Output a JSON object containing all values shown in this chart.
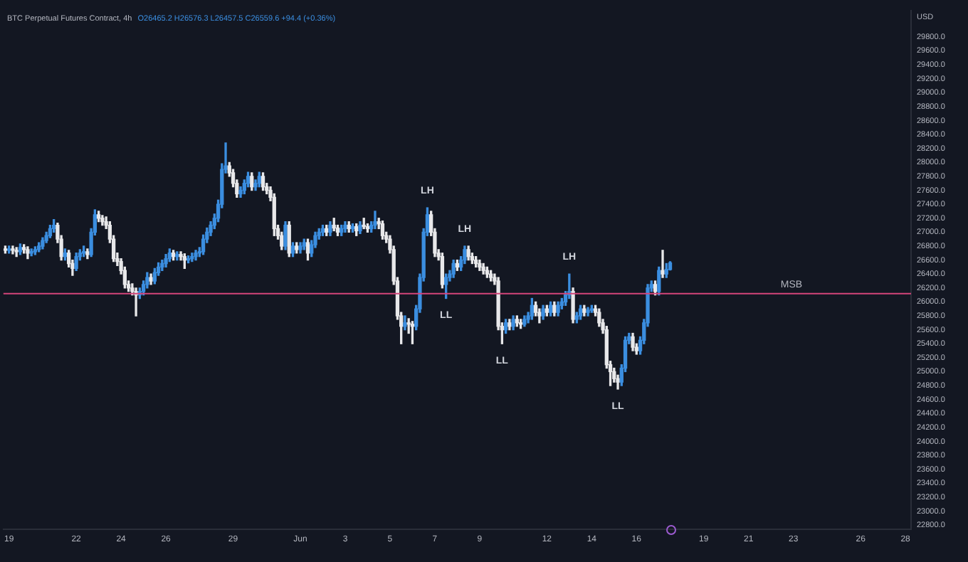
{
  "chart_data": {
    "type": "candlestick",
    "title": "BTC Perpetual Futures Contract, 4h",
    "subtitle": "O26465.2 H26576.3 L26457.5 C26559.6 +94.4 (+0.36%)",
    "ylabel": "USD",
    "x": [
      "--05-18T20:00",
      "--05-19T00:00",
      "--05-19T04:00",
      "--05-19T08:00",
      "--05-19T12:00",
      "--05-19T16:00",
      "--05-19T20:00",
      "--05-20T00:00",
      "--05-20T04:00",
      "--05-20T08:00",
      "--05-20T12:00",
      "--05-20T16:00",
      "--05-20T20:00",
      "--05-21T00:00",
      "--05-21T04:00",
      "--05-21T08:00",
      "--05-21T12:00",
      "--05-21T16:00",
      "--05-21T20:00",
      "--05-22T00:00",
      "--05-22T04:00",
      "--05-22T08:00",
      "--05-22T12:00",
      "--05-22T16:00",
      "--05-22T20:00",
      "--05-23T00:00",
      "--05-23T04:00",
      "--05-23T08:00",
      "--05-23T12:00",
      "--05-23T16:00",
      "--05-23T20:00",
      "--05-24T00:00",
      "--05-24T04:00",
      "--05-24T08:00",
      "--05-24T12:00",
      "--05-24T16:00",
      "--05-24T20:00",
      "--05-25T00:00",
      "--05-25T04:00",
      "--05-25T08:00",
      "--05-25T12:00",
      "--05-25T16:00",
      "--05-25T20:00",
      "--05-26T00:00",
      "--05-26T04:00",
      "--05-26T08:00",
      "--05-26T12:00",
      "--05-26T16:00",
      "--05-26T20:00",
      "--05-27T00:00",
      "--05-27T04:00",
      "--05-27T08:00",
      "--05-27T12:00",
      "--05-27T16:00",
      "--05-27T20:00",
      "--05-28T00:00",
      "--05-28T04:00",
      "--05-28T08:00",
      "--05-28T12:00",
      "--05-28T16:00",
      "--05-28T20:00",
      "--05-29T00:00",
      "--05-29T04:00",
      "--05-29T08:00",
      "--05-29T12:00",
      "--05-29T16:00",
      "--05-29T20:00",
      "--05-30T00:00",
      "--05-30T04:00",
      "--05-30T08:00",
      "--05-30T12:00",
      "--05-30T16:00",
      "--05-30T20:00",
      "--05-31T00:00",
      "--05-31T04:00",
      "--05-31T08:00",
      "--05-31T12:00",
      "--05-31T16:00",
      "--05-31T20:00",
      "--06-01T00:00",
      "--06-01T04:00",
      "--06-01T08:00",
      "--06-01T12:00",
      "--06-01T16:00",
      "--06-01T20:00",
      "--06-02T00:00",
      "--06-02T04:00",
      "--06-02T08:00",
      "--06-02T12:00",
      "--06-02T16:00",
      "--06-02T20:00",
      "--06-03T00:00",
      "--06-03T04:00",
      "--06-03T08:00",
      "--06-03T12:00",
      "--06-03T16:00",
      "--06-03T20:00",
      "--06-04T00:00",
      "--06-04T04:00",
      "--06-04T08:00",
      "--06-04T12:00",
      "--06-04T16:00",
      "--06-04T20:00",
      "--06-05T00:00",
      "--06-05T04:00",
      "--06-05T08:00",
      "--06-05T12:00",
      "--06-05T16:00",
      "--06-05T20:00",
      "--06-06T00:00",
      "--06-06T04:00",
      "--06-06T08:00",
      "--06-06T12:00",
      "--06-06T16:00",
      "--06-06T20:00",
      "--06-07T00:00",
      "--06-07T04:00",
      "--06-07T08:00",
      "--06-07T12:00",
      "--06-07T16:00",
      "--06-07T20:00",
      "--06-08T00:00",
      "--06-08T04:00",
      "--06-08T08:00",
      "--06-08T12:00",
      "--06-08T16:00",
      "--06-08T20:00",
      "--06-09T00:00",
      "--06-09T04:00",
      "--06-09T08:00",
      "--06-09T12:00",
      "--06-09T16:00",
      "--06-09T20:00",
      "--06-10T00:00",
      "--06-10T04:00",
      "--06-10T08:00",
      "--06-10T12:00",
      "--06-10T16:00",
      "--06-10T20:00",
      "--06-11T00:00",
      "--06-11T04:00",
      "--06-11T08:00",
      "--06-11T12:00",
      "--06-11T16:00",
      "--06-11T20:00",
      "--06-12T00:00",
      "--06-12T04:00",
      "--06-12T08:00",
      "--06-12T12:00",
      "--06-12T16:00",
      "--06-12T20:00",
      "--06-13T00:00",
      "--06-13T04:00",
      "--06-13T08:00",
      "--06-13T12:00",
      "--06-13T16:00",
      "--06-13T20:00",
      "--06-14T00:00",
      "--06-14T04:00",
      "--06-14T08:00",
      "--06-14T12:00",
      "--06-14T16:00",
      "--06-14T20:00",
      "--06-15T00:00",
      "--06-15T04:00",
      "--06-15T08:00",
      "--06-15T12:00",
      "--06-15T16:00",
      "--06-15T20:00",
      "--06-16T00:00",
      "--06-16T04:00",
      "--06-16T08:00",
      "--06-16T12:00",
      "--06-16T16:00",
      "--06-16T20:00",
      "--06-17T00:00",
      "--06-17T04:00",
      "--06-17T08:00",
      "--06-17T12:00"
    ],
    "ohlc": [
      [
        26760,
        26800,
        26700,
        26740
      ],
      [
        26740,
        26800,
        26700,
        26760
      ],
      [
        26760,
        26800,
        26690,
        26740
      ],
      [
        26740,
        26780,
        26650,
        26720
      ],
      [
        26720,
        26830,
        26680,
        26780
      ],
      [
        26780,
        26820,
        26700,
        26750
      ],
      [
        26750,
        26790,
        26620,
        26700
      ],
      [
        26700,
        26760,
        26660,
        26720
      ],
      [
        26720,
        26790,
        26680,
        26750
      ],
      [
        26750,
        26850,
        26720,
        26800
      ],
      [
        26800,
        26920,
        26760,
        26880
      ],
      [
        26880,
        27000,
        26850,
        26950
      ],
      [
        26950,
        27100,
        26920,
        27050
      ],
      [
        27050,
        27180,
        27000,
        27100
      ],
      [
        27100,
        27130,
        26850,
        26900
      ],
      [
        26900,
        26950,
        26600,
        26650
      ],
      [
        26650,
        26760,
        26600,
        26700
      ],
      [
        26700,
        26740,
        26500,
        26550
      ],
      [
        26550,
        26600,
        26380,
        26480
      ],
      [
        26480,
        26700,
        26450,
        26650
      ],
      [
        26650,
        26750,
        26600,
        26700
      ],
      [
        26700,
        26800,
        26650,
        26720
      ],
      [
        26720,
        26760,
        26620,
        26680
      ],
      [
        26680,
        27050,
        26650,
        27000
      ],
      [
        27000,
        27320,
        26960,
        27250
      ],
      [
        27250,
        27300,
        27150,
        27200
      ],
      [
        27200,
        27240,
        27100,
        27150
      ],
      [
        27150,
        27220,
        27050,
        27100
      ],
      [
        27100,
        27150,
        26850,
        26900
      ],
      [
        26900,
        26950,
        26580,
        26620
      ],
      [
        26620,
        26700,
        26520,
        26580
      ],
      [
        26580,
        26620,
        26400,
        26450
      ],
      [
        26450,
        26500,
        26200,
        26250
      ],
      [
        26250,
        26300,
        26150,
        26200
      ],
      [
        26200,
        26260,
        26100,
        26150
      ],
      [
        26150,
        26200,
        25800,
        26100
      ],
      [
        26100,
        26200,
        26050,
        26150
      ],
      [
        26150,
        26300,
        26100,
        26250
      ],
      [
        26250,
        26420,
        26200,
        26350
      ],
      [
        26350,
        26400,
        26250,
        26300
      ],
      [
        26300,
        26480,
        26260,
        26420
      ],
      [
        26420,
        26560,
        26380,
        26500
      ],
      [
        26500,
        26600,
        26450,
        26550
      ],
      [
        26550,
        26680,
        26500,
        26620
      ],
      [
        26620,
        26760,
        26580,
        26700
      ],
      [
        26700,
        26740,
        26600,
        26650
      ],
      [
        26650,
        26720,
        26600,
        26680
      ],
      [
        26680,
        26720,
        26600,
        26650
      ],
      [
        26650,
        26690,
        26480,
        26600
      ],
      [
        26600,
        26660,
        26560,
        26620
      ],
      [
        26620,
        26700,
        26580,
        26650
      ],
      [
        26650,
        26740,
        26600,
        26700
      ],
      [
        26700,
        26780,
        26650,
        26720
      ],
      [
        26720,
        26960,
        26680,
        26900
      ],
      [
        26900,
        27060,
        26850,
        27000
      ],
      [
        27000,
        27150,
        26950,
        27100
      ],
      [
        27100,
        27260,
        27050,
        27200
      ],
      [
        27200,
        27460,
        27150,
        27400
      ],
      [
        27400,
        27980,
        27350,
        27900
      ],
      [
        27900,
        28280,
        27850,
        27950
      ],
      [
        27950,
        28000,
        27800,
        27850
      ],
      [
        27850,
        27900,
        27650,
        27700
      ],
      [
        27700,
        27750,
        27500,
        27550
      ],
      [
        27550,
        27650,
        27500,
        27600
      ],
      [
        27600,
        27750,
        27550,
        27700
      ],
      [
        27700,
        27860,
        27650,
        27800
      ],
      [
        27800,
        27850,
        27600,
        27650
      ],
      [
        27650,
        27750,
        27600,
        27700
      ],
      [
        27700,
        27860,
        27650,
        27800
      ],
      [
        27800,
        27850,
        27600,
        27650
      ],
      [
        27650,
        27700,
        27550,
        27600
      ],
      [
        27600,
        27650,
        27450,
        27500
      ],
      [
        27500,
        27550,
        26950,
        27050
      ],
      [
        27050,
        27100,
        26900,
        26950
      ],
      [
        26950,
        27000,
        26750,
        26800
      ],
      [
        26800,
        27150,
        26750,
        27100
      ],
      [
        27100,
        27150,
        26650,
        26700
      ],
      [
        26700,
        26850,
        26650,
        26800
      ],
      [
        26800,
        26850,
        26700,
        26750
      ],
      [
        26750,
        26850,
        26700,
        26800
      ],
      [
        26800,
        26900,
        26750,
        26850
      ],
      [
        26850,
        26900,
        26600,
        26700
      ],
      [
        26700,
        26880,
        26650,
        26820
      ],
      [
        26820,
        27000,
        26780,
        26950
      ],
      [
        26950,
        27050,
        26900,
        27000
      ],
      [
        27000,
        27100,
        26950,
        27050
      ],
      [
        27050,
        27100,
        26950,
        27000
      ],
      [
        27000,
        27150,
        26950,
        27100
      ],
      [
        27100,
        27200,
        27020,
        27060
      ],
      [
        27060,
        27100,
        26950,
        27000
      ],
      [
        27000,
        27100,
        26950,
        27050
      ],
      [
        27050,
        27150,
        27000,
        27100
      ],
      [
        27100,
        27150,
        27000,
        27050
      ],
      [
        27050,
        27120,
        27000,
        27080
      ],
      [
        27080,
        27120,
        26950,
        27020
      ],
      [
        27020,
        27150,
        26980,
        27100
      ],
      [
        27100,
        27200,
        27050,
        27080
      ],
      [
        27080,
        27120,
        27000,
        27050
      ],
      [
        27050,
        27150,
        27000,
        27100
      ],
      [
        27100,
        27300,
        27050,
        27150
      ],
      [
        27150,
        27200,
        27050,
        27120
      ],
      [
        27120,
        27160,
        26900,
        26950
      ],
      [
        26950,
        27000,
        26850,
        26900
      ],
      [
        26900,
        26950,
        26700,
        26750
      ],
      [
        26750,
        26800,
        26250,
        26300
      ],
      [
        26300,
        26350,
        25750,
        25800
      ],
      [
        25800,
        25850,
        25400,
        25650
      ],
      [
        25650,
        25800,
        25600,
        25700
      ],
      [
        25700,
        25760,
        25550,
        25680
      ],
      [
        25680,
        25720,
        25400,
        25650
      ],
      [
        25650,
        25950,
        25600,
        25900
      ],
      [
        25900,
        26400,
        25850,
        26350
      ],
      [
        26350,
        27050,
        26300,
        27000
      ],
      [
        27000,
        27350,
        26950,
        27250
      ],
      [
        27250,
        27300,
        26950,
        27000
      ],
      [
        27000,
        27050,
        26650,
        26700
      ],
      [
        26700,
        26750,
        26600,
        26650
      ],
      [
        26650,
        26700,
        26200,
        26250
      ],
      [
        26250,
        26400,
        26050,
        26350
      ],
      [
        26350,
        26450,
        26300,
        26400
      ],
      [
        26400,
        26600,
        26350,
        26550
      ],
      [
        26550,
        26600,
        26450,
        26500
      ],
      [
        26500,
        26650,
        26450,
        26600
      ],
      [
        26600,
        26800,
        26550,
        26750
      ],
      [
        26750,
        26800,
        26600,
        26650
      ],
      [
        26650,
        26700,
        26550,
        26600
      ],
      [
        26600,
        26650,
        26500,
        26550
      ],
      [
        26550,
        26600,
        26450,
        26500
      ],
      [
        26500,
        26550,
        26400,
        26450
      ],
      [
        26450,
        26500,
        26350,
        26400
      ],
      [
        26400,
        26450,
        26300,
        26350
      ],
      [
        26350,
        26400,
        26250,
        26300
      ],
      [
        26300,
        26350,
        25600,
        25650
      ],
      [
        25650,
        25700,
        25400,
        25600
      ],
      [
        25600,
        25750,
        25550,
        25700
      ],
      [
        25700,
        25750,
        25600,
        25650
      ],
      [
        25650,
        25800,
        25600,
        25750
      ],
      [
        25750,
        25800,
        25650,
        25700
      ],
      [
        25700,
        25750,
        25620,
        25680
      ],
      [
        25680,
        25800,
        25650,
        25750
      ],
      [
        25750,
        25850,
        25700,
        25800
      ],
      [
        25800,
        26050,
        25750,
        25950
      ],
      [
        25950,
        26000,
        25800,
        25850
      ],
      [
        25850,
        25900,
        25700,
        25800
      ],
      [
        25800,
        25950,
        25750,
        25900
      ],
      [
        25900,
        25950,
        25800,
        25850
      ],
      [
        25850,
        26000,
        25800,
        25950
      ],
      [
        25950,
        26000,
        25800,
        25850
      ],
      [
        25850,
        26000,
        25800,
        25950
      ],
      [
        25950,
        26050,
        25900,
        26000
      ],
      [
        26000,
        26150,
        25950,
        26100
      ],
      [
        26100,
        26400,
        26050,
        26150
      ],
      [
        26150,
        26200,
        25700,
        25750
      ],
      [
        25750,
        25850,
        25700,
        25800
      ],
      [
        25800,
        25950,
        25750,
        25900
      ],
      [
        25900,
        25950,
        25800,
        25850
      ],
      [
        25850,
        25920,
        25800,
        25880
      ],
      [
        25880,
        25950,
        25850,
        25900
      ],
      [
        25900,
        25950,
        25800,
        25850
      ],
      [
        25850,
        25900,
        25650,
        25700
      ],
      [
        25700,
        25750,
        25550,
        25600
      ],
      [
        25600,
        25650,
        25050,
        25100
      ],
      [
        25100,
        25150,
        24800,
        25000
      ],
      [
        25000,
        25050,
        24850,
        24900
      ],
      [
        24900,
        24950,
        24750,
        24850
      ],
      [
        24850,
        25100,
        24800,
        25050
      ],
      [
        25050,
        25500,
        25000,
        25450
      ],
      [
        25450,
        25550,
        25400,
        25500
      ],
      [
        25500,
        25550,
        25300,
        25350
      ],
      [
        25350,
        25400,
        25250,
        25300
      ],
      [
        25300,
        25500,
        25250,
        25450
      ],
      [
        25450,
        25750,
        25400,
        25700
      ],
      [
        25700,
        26250,
        25650,
        26200
      ],
      [
        26200,
        26300,
        26150,
        26250
      ],
      [
        26250,
        26300,
        26100,
        26150
      ],
      [
        26150,
        26500,
        26100,
        26450
      ],
      [
        26450,
        26740,
        26350,
        26400
      ],
      [
        26400,
        26550,
        26350,
        26465.2
      ],
      [
        26465.2,
        26576.3,
        26457.5,
        26559.6
      ]
    ],
    "colors": [
      "#e8e8ea",
      "#3b8ee0",
      "#e8e8ea",
      "#e8e8ea",
      "#3b8ee0",
      "#e8e8ea",
      "#e8e8ea",
      "#3b8ee0",
      "#3b8ee0",
      "#3b8ee0",
      "#3b8ee0",
      "#3b8ee0",
      "#3b8ee0",
      "#3b8ee0",
      "#e8e8ea",
      "#e8e8ea",
      "#3b8ee0",
      "#e8e8ea",
      "#e8e8ea",
      "#3b8ee0",
      "#3b8ee0",
      "#3b8ee0",
      "#e8e8ea",
      "#3b8ee0",
      "#3b8ee0",
      "#e8e8ea",
      "#e8e8ea",
      "#e8e8ea",
      "#e8e8ea",
      "#e8e8ea",
      "#e8e8ea",
      "#e8e8ea",
      "#e8e8ea",
      "#e8e8ea",
      "#e8e8ea",
      "#e8e8ea",
      "#3b8ee0",
      "#3b8ee0",
      "#3b8ee0",
      "#e8e8ea",
      "#3b8ee0",
      "#3b8ee0",
      "#3b8ee0",
      "#3b8ee0",
      "#3b8ee0",
      "#e8e8ea",
      "#3b8ee0",
      "#e8e8ea",
      "#e8e8ea",
      "#3b8ee0",
      "#3b8ee0",
      "#3b8ee0",
      "#3b8ee0",
      "#3b8ee0",
      "#3b8ee0",
      "#3b8ee0",
      "#3b8ee0",
      "#3b8ee0",
      "#3b8ee0",
      "#3b8ee0",
      "#e8e8ea",
      "#e8e8ea",
      "#e8e8ea",
      "#3b8ee0",
      "#3b8ee0",
      "#3b8ee0",
      "#e8e8ea",
      "#3b8ee0",
      "#3b8ee0",
      "#e8e8ea",
      "#e8e8ea",
      "#e8e8ea",
      "#e8e8ea",
      "#e8e8ea",
      "#e8e8ea",
      "#3b8ee0",
      "#e8e8ea",
      "#3b8ee0",
      "#e8e8ea",
      "#3b8ee0",
      "#3b8ee0",
      "#e8e8ea",
      "#3b8ee0",
      "#3b8ee0",
      "#3b8ee0",
      "#3b8ee0",
      "#e8e8ea",
      "#3b8ee0",
      "#e8e8ea",
      "#e8e8ea",
      "#3b8ee0",
      "#3b8ee0",
      "#e8e8ea",
      "#3b8ee0",
      "#e8e8ea",
      "#3b8ee0",
      "#e8e8ea",
      "#e8e8ea",
      "#3b8ee0",
      "#3b8ee0",
      "#e8e8ea",
      "#e8e8ea",
      "#e8e8ea",
      "#e8e8ea",
      "#e8e8ea",
      "#e8e8ea",
      "#e8e8ea",
      "#3b8ee0",
      "#e8e8ea",
      "#e8e8ea",
      "#3b8ee0",
      "#3b8ee0",
      "#3b8ee0",
      "#3b8ee0",
      "#e8e8ea",
      "#e8e8ea",
      "#e8e8ea",
      "#e8e8ea",
      "#3b8ee0",
      "#3b8ee0",
      "#3b8ee0",
      "#e8e8ea",
      "#3b8ee0",
      "#3b8ee0",
      "#e8e8ea",
      "#e8e8ea",
      "#e8e8ea",
      "#e8e8ea",
      "#e8e8ea",
      "#e8e8ea",
      "#e8e8ea",
      "#e8e8ea",
      "#e8e8ea",
      "#e8e8ea",
      "#3b8ee0",
      "#e8e8ea",
      "#3b8ee0",
      "#e8e8ea",
      "#e8e8ea",
      "#3b8ee0",
      "#3b8ee0",
      "#3b8ee0",
      "#e8e8ea",
      "#e8e8ea",
      "#3b8ee0",
      "#e8e8ea",
      "#3b8ee0",
      "#e8e8ea",
      "#3b8ee0",
      "#3b8ee0",
      "#3b8ee0",
      "#3b8ee0",
      "#e8e8ea",
      "#3b8ee0",
      "#3b8ee0",
      "#e8e8ea",
      "#3b8ee0",
      "#3b8ee0",
      "#e8e8ea",
      "#e8e8ea",
      "#e8e8ea",
      "#e8e8ea",
      "#e8e8ea",
      "#e8e8ea",
      "#e8e8ea",
      "#3b8ee0",
      "#3b8ee0",
      "#3b8ee0",
      "#e8e8ea",
      "#e8e8ea",
      "#3b8ee0",
      "#3b8ee0",
      "#3b8ee0",
      "#3b8ee0",
      "#e8e8ea",
      "#3b8ee0",
      "#e8e8ea",
      "#3b8ee0",
      "#3b8ee0"
    ],
    "xlim": [
      "--05-18T18:00",
      "--06-28T06:00"
    ],
    "xticks": [
      {
        "value": "--05-19",
        "label": "19"
      },
      {
        "value": "--05-22",
        "label": "22"
      },
      {
        "value": "--05-24",
        "label": "24"
      },
      {
        "value": "--05-26",
        "label": "26"
      },
      {
        "value": "--05-29",
        "label": "29"
      },
      {
        "value": "--06-01",
        "label": "Jun"
      },
      {
        "value": "--06-03",
        "label": "3"
      },
      {
        "value": "--06-05",
        "label": "5"
      },
      {
        "value": "--06-07",
        "label": "7"
      },
      {
        "value": "--06-09",
        "label": "9"
      },
      {
        "value": "--06-12",
        "label": "12"
      },
      {
        "value": "--06-14",
        "label": "14"
      },
      {
        "value": "--06-16",
        "label": "16"
      },
      {
        "value": "--06-19",
        "label": "19"
      },
      {
        "value": "--06-21",
        "label": "21"
      },
      {
        "value": "--06-23",
        "label": "23"
      },
      {
        "value": "--06-26",
        "label": "26"
      },
      {
        "value": "--06-28",
        "label": "28"
      }
    ],
    "ylim": [
      22740,
      30180
    ],
    "yticks": [
      {
        "value": 22800,
        "label": "22800.0"
      },
      {
        "value": 23000,
        "label": "23000.0"
      },
      {
        "value": 23200,
        "label": "23200.0"
      },
      {
        "value": 23400,
        "label": "23400.0"
      },
      {
        "value": 23600,
        "label": "23600.0"
      },
      {
        "value": 23800,
        "label": "23800.0"
      },
      {
        "value": 24000,
        "label": "24000.0"
      },
      {
        "value": 24200,
        "label": "24200.0"
      },
      {
        "value": 24400,
        "label": "24400.0"
      },
      {
        "value": 24600,
        "label": "24600.0"
      },
      {
        "value": 24800,
        "label": "24800.0"
      },
      {
        "value": 25000,
        "label": "25000.0"
      },
      {
        "value": 25200,
        "label": "25200.0"
      },
      {
        "value": 25400,
        "label": "25400.0"
      },
      {
        "value": 25600,
        "label": "25600.0"
      },
      {
        "value": 25800,
        "label": "25800.0"
      },
      {
        "value": 26000,
        "label": "26000.0"
      },
      {
        "value": 26200,
        "label": "26200.0"
      },
      {
        "value": 26400,
        "label": "26400.0"
      },
      {
        "value": 26600,
        "label": "26600.0"
      },
      {
        "value": 26800,
        "label": "26800.0"
      },
      {
        "value": 27000,
        "label": "27000.0"
      },
      {
        "value": 27200,
        "label": "27200.0"
      },
      {
        "value": 27400,
        "label": "27400.0"
      },
      {
        "value": 27600,
        "label": "27600.0"
      },
      {
        "value": 27800,
        "label": "27800.0"
      },
      {
        "value": 28000,
        "label": "28000.0"
      },
      {
        "value": 28200,
        "label": "28200.0"
      },
      {
        "value": 28400,
        "label": "28400.0"
      },
      {
        "value": 28600,
        "label": "28600.0"
      },
      {
        "value": 28800,
        "label": "28800.0"
      },
      {
        "value": 29000,
        "label": "29000.0"
      },
      {
        "value": 29200,
        "label": "29200.0"
      },
      {
        "value": 29400,
        "label": "29400.0"
      },
      {
        "value": 29600,
        "label": "29600.0"
      },
      {
        "value": 29800,
        "label": "29800.0"
      }
    ],
    "ref_lines": [
      {
        "axis": "y",
        "value": 26120,
        "label": "MSB",
        "color": "#d4457a"
      }
    ],
    "annotations": [
      {
        "text": "LH",
        "x": "--06-06T16:00",
        "y": 27350
      },
      {
        "text": "LL",
        "x": "--06-07T12:00",
        "y": 26050
      },
      {
        "text": "LH",
        "x": "--06-08T08:00",
        "y": 26800
      },
      {
        "text": "LL",
        "x": "--06-10T00:00",
        "y": 25400
      },
      {
        "text": "LH",
        "x": "--06-13T00:00",
        "y": 26400
      },
      {
        "text": "LL",
        "x": "--06-15T04:00",
        "y": 24750
      }
    ],
    "grid": false,
    "legend": false
  }
}
